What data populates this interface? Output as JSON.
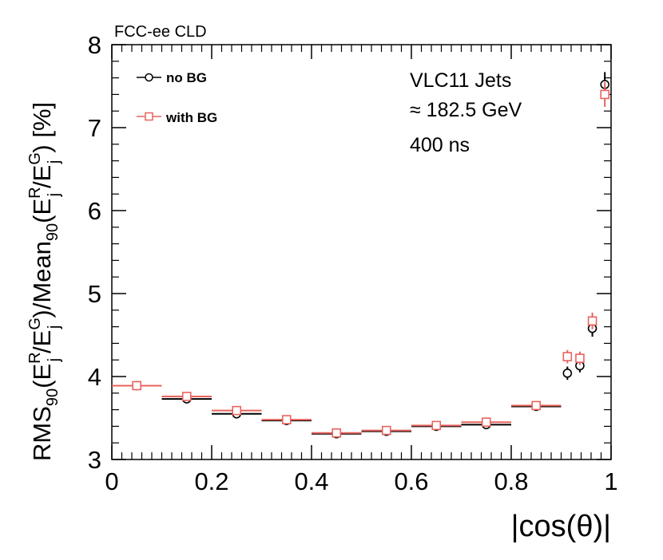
{
  "header": {
    "experiment": "FCC-ee CLD"
  },
  "chart_data": {
    "type": "scatter",
    "title": "",
    "xlabel": "|cos(θ)|",
    "ylabel": "RMS90(E_j^R/E_j^G)/Mean90(E_j^R/E_j^G) [%]",
    "ylabel_parts": {
      "rms": "RMS",
      "sub90": "90",
      "e": "E",
      "r": "R",
      "j": "j",
      "g": "G",
      "mean": "/Mean",
      "lp": "(",
      "slash": "/",
      "rp": ")",
      "unit": " [%]"
    },
    "xlim": [
      0,
      1
    ],
    "ylim": [
      3,
      8
    ],
    "xticks": [
      0,
      0.2,
      0.4,
      0.6,
      0.8,
      1
    ],
    "xtick_labels": [
      "0",
      "0.2",
      "0.4",
      "0.6",
      "0.8",
      "1"
    ],
    "yticks": [
      3,
      4,
      5,
      6,
      7,
      8
    ],
    "ytick_labels": [
      "3",
      "4",
      "5",
      "6",
      "7",
      "8"
    ],
    "annotations": [
      "VLC11 Jets",
      "≈ 182.5 GeV",
      "400 ns"
    ],
    "legend_position": "top-left",
    "series": [
      {
        "name": "no BG",
        "color": "#000000",
        "marker": "circle",
        "points": [
          {
            "x": 0.05,
            "xlo": 0.0,
            "xhi": 0.1,
            "y": 3.89,
            "yerr": 0.05
          },
          {
            "x": 0.15,
            "xlo": 0.1,
            "xhi": 0.2,
            "y": 3.73,
            "yerr": 0.04
          },
          {
            "x": 0.25,
            "xlo": 0.2,
            "xhi": 0.3,
            "y": 3.55,
            "yerr": 0.04
          },
          {
            "x": 0.35,
            "xlo": 0.3,
            "xhi": 0.4,
            "y": 3.47,
            "yerr": 0.03
          },
          {
            "x": 0.45,
            "xlo": 0.4,
            "xhi": 0.5,
            "y": 3.31,
            "yerr": 0.03
          },
          {
            "x": 0.55,
            "xlo": 0.5,
            "xhi": 0.6,
            "y": 3.34,
            "yerr": 0.03
          },
          {
            "x": 0.65,
            "xlo": 0.6,
            "xhi": 0.7,
            "y": 3.4,
            "yerr": 0.03
          },
          {
            "x": 0.75,
            "xlo": 0.7,
            "xhi": 0.8,
            "y": 3.42,
            "yerr": 0.03
          },
          {
            "x": 0.85,
            "xlo": 0.8,
            "xhi": 0.9,
            "y": 3.64,
            "yerr": 0.03
          },
          {
            "x": 0.9125,
            "xlo": 0.9125,
            "xhi": 0.9125,
            "y": 4.04,
            "yerr": 0.08
          },
          {
            "x": 0.9375,
            "xlo": 0.9375,
            "xhi": 0.9375,
            "y": 4.13,
            "yerr": 0.08
          },
          {
            "x": 0.9625,
            "xlo": 0.9625,
            "xhi": 0.9625,
            "y": 4.58,
            "yerr": 0.1
          },
          {
            "x": 0.9875,
            "xlo": 0.9875,
            "xhi": 0.9875,
            "y": 7.52,
            "yerr": 0.15
          }
        ]
      },
      {
        "name": "with BG",
        "color": "#e8635e",
        "marker": "square",
        "points": [
          {
            "x": 0.05,
            "xlo": 0.0,
            "xhi": 0.1,
            "y": 3.89,
            "yerr": 0.05
          },
          {
            "x": 0.15,
            "xlo": 0.1,
            "xhi": 0.2,
            "y": 3.76,
            "yerr": 0.04
          },
          {
            "x": 0.25,
            "xlo": 0.2,
            "xhi": 0.3,
            "y": 3.59,
            "yerr": 0.04
          },
          {
            "x": 0.35,
            "xlo": 0.3,
            "xhi": 0.4,
            "y": 3.48,
            "yerr": 0.03
          },
          {
            "x": 0.45,
            "xlo": 0.4,
            "xhi": 0.5,
            "y": 3.32,
            "yerr": 0.03
          },
          {
            "x": 0.55,
            "xlo": 0.5,
            "xhi": 0.6,
            "y": 3.35,
            "yerr": 0.03
          },
          {
            "x": 0.65,
            "xlo": 0.6,
            "xhi": 0.7,
            "y": 3.41,
            "yerr": 0.03
          },
          {
            "x": 0.75,
            "xlo": 0.7,
            "xhi": 0.8,
            "y": 3.45,
            "yerr": 0.03
          },
          {
            "x": 0.85,
            "xlo": 0.8,
            "xhi": 0.9,
            "y": 3.65,
            "yerr": 0.03
          },
          {
            "x": 0.9125,
            "xlo": 0.9125,
            "xhi": 0.9125,
            "y": 4.24,
            "yerr": 0.08
          },
          {
            "x": 0.9375,
            "xlo": 0.9375,
            "xhi": 0.9375,
            "y": 4.22,
            "yerr": 0.08
          },
          {
            "x": 0.9625,
            "xlo": 0.9625,
            "xhi": 0.9625,
            "y": 4.67,
            "yerr": 0.1
          },
          {
            "x": 0.9875,
            "xlo": 0.9875,
            "xhi": 0.9875,
            "y": 7.4,
            "yerr": 0.15
          }
        ]
      }
    ]
  }
}
